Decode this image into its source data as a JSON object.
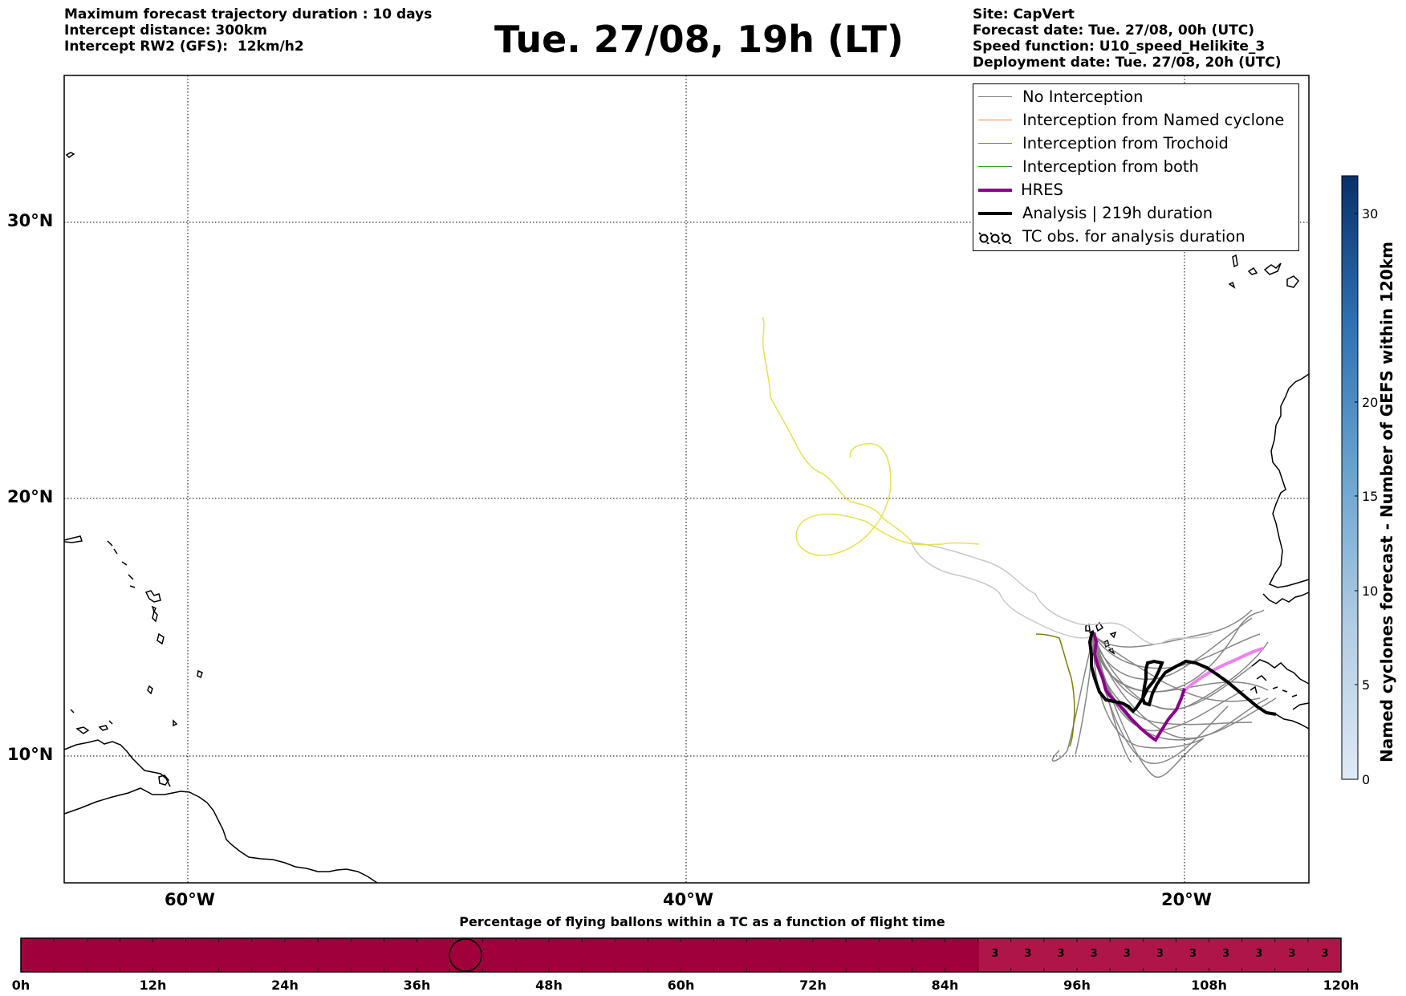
{
  "header": {
    "left": [
      "Maximum forecast trajectory duration : 10 days",
      "Intercept distance: 300km",
      "Intercept RW2 (GFS):  12km/h2"
    ],
    "title": "Tue. 27/08, 19h (LT)",
    "right": [
      "Site: CapVert",
      "Forecast date: Tue. 27/08, 00h (UTC)",
      "Speed function: U10_speed_Helikite_3",
      "Deployment date: Tue. 27/08, 20h (UTC)"
    ]
  },
  "map": {
    "lat_labels": [
      "30°N",
      "20°N",
      "10°N"
    ],
    "lon_labels": [
      "60°W",
      "40°W",
      "20°W"
    ],
    "gridlines": true,
    "gridline_style": "dotted",
    "extent": {
      "lon_min": -65,
      "lon_max": -15,
      "lat_min": 5.5,
      "lat_max": 35
    }
  },
  "legend": {
    "placement": "top-right",
    "items": [
      {
        "label": "No Interception",
        "color": "#808080",
        "style": "thin"
      },
      {
        "label": "Interception from Named cyclone",
        "color": "#ff7f50",
        "style": "thin"
      },
      {
        "label": "Interception from Trochoid",
        "color": "#808000",
        "style": "thin"
      },
      {
        "label": "Interception from both",
        "color": "#2ca02c",
        "style": "thin"
      },
      {
        "label": "HRES",
        "color": "#8b008b",
        "style": "thick"
      },
      {
        "label": "Analysis | 219h duration",
        "color": "#000000",
        "style": "thick"
      },
      {
        "label": "TC obs. for analysis duration",
        "color": "#000000",
        "style": "cyclone-icons"
      }
    ]
  },
  "colorbar": {
    "label": "Named cyclones forecast - Number of GEFS within 120km",
    "ticks": [
      "0",
      "5",
      "10",
      "15",
      "20",
      "30"
    ],
    "min": 0,
    "max": 32,
    "color_low": "#dfe9f6",
    "color_high": "#08306b"
  },
  "timebar": {
    "title": "Percentage of flying ballons within a TC as a function of flight time",
    "ticks": [
      "0h",
      "12h",
      "24h",
      "36h",
      "48h",
      "60h",
      "72h",
      "84h",
      "96h",
      "108h",
      "120h"
    ],
    "bar_color": "#a0003c",
    "cell_values": [
      "3",
      "3",
      "3",
      "3",
      "3",
      "3",
      "3",
      "3",
      "3",
      "3",
      "3"
    ]
  }
}
